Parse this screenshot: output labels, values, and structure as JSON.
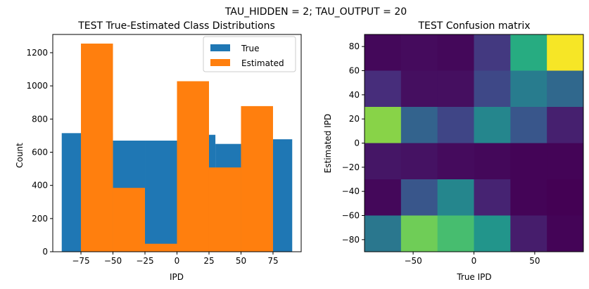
{
  "figure_title": "TAU_HIDDEN = 2; TAU_OUTPUT = 20",
  "chart_data": [
    {
      "type": "bar",
      "subtype": "histogram",
      "title": "TEST True-Estimated Class Distributions",
      "xlabel": "IPD",
      "ylabel": "Count",
      "xlim": [
        -97,
        97
      ],
      "ylim": [
        0,
        1310
      ],
      "xticks": [
        -75,
        -50,
        -25,
        0,
        25,
        50,
        75
      ],
      "yticks": [
        0,
        200,
        400,
        600,
        800,
        1000,
        1200
      ],
      "legend": {
        "placement": "top-right",
        "entries": [
          "True",
          "Estimated"
        ]
      },
      "bin_edges": [
        -90,
        -75,
        -50,
        -25,
        0,
        25,
        30,
        50,
        75,
        90
      ],
      "series": [
        {
          "name": "True",
          "color": "#1f77b4",
          "bins": [
            {
              "x0": -90,
              "x1": -75,
              "value": 715
            },
            {
              "x0": -75,
              "x1": -50,
              "value": 715
            },
            {
              "x0": -50,
              "x1": -25,
              "value": 670
            },
            {
              "x0": -25,
              "x1": 0,
              "value": 670
            },
            {
              "x0": 0,
              "x1": 25,
              "value": 670
            },
            {
              "x0": 25,
              "x1": 30,
              "value": 705
            },
            {
              "x0": 30,
              "x1": 50,
              "value": 650
            },
            {
              "x0": 50,
              "x1": 75,
              "value": 650
            },
            {
              "x0": 75,
              "x1": 90,
              "value": 678
            }
          ]
        },
        {
          "name": "Estimated",
          "color": "#ff7f0e",
          "bins": [
            {
              "x0": -75,
              "x1": -50,
              "value": 1255
            },
            {
              "x0": -50,
              "x1": -25,
              "value": 385
            },
            {
              "x0": -25,
              "x1": 0,
              "value": 48
            },
            {
              "x0": 0,
              "x1": 25,
              "value": 1028
            },
            {
              "x0": 25,
              "x1": 50,
              "value": 508
            },
            {
              "x0": 50,
              "x1": 75,
              "value": 878
            }
          ]
        }
      ]
    },
    {
      "type": "heatmap",
      "title": "TEST Confusion matrix",
      "xlabel": "True IPD",
      "ylabel": "Estimated IPD",
      "xlim": [
        -90,
        90
      ],
      "ylim": [
        -90,
        90
      ],
      "xticks": [
        -50,
        0,
        50
      ],
      "yticks": [
        -80,
        -60,
        -40,
        -20,
        0,
        20,
        40,
        60,
        80
      ],
      "colormap": "viridis",
      "rows_top_to_bottom": [
        [
          0.02,
          0.03,
          0.02,
          0.17,
          0.62,
          0.99
        ],
        [
          0.13,
          0.04,
          0.04,
          0.22,
          0.42,
          0.34
        ],
        [
          0.82,
          0.32,
          0.21,
          0.46,
          0.27,
          0.09
        ],
        [
          0.06,
          0.05,
          0.03,
          0.02,
          0.01,
          0.01
        ],
        [
          0.02,
          0.27,
          0.46,
          0.1,
          0.01,
          0.0
        ],
        [
          0.4,
          0.78,
          0.7,
          0.52,
          0.08,
          0.01
        ]
      ]
    }
  ]
}
